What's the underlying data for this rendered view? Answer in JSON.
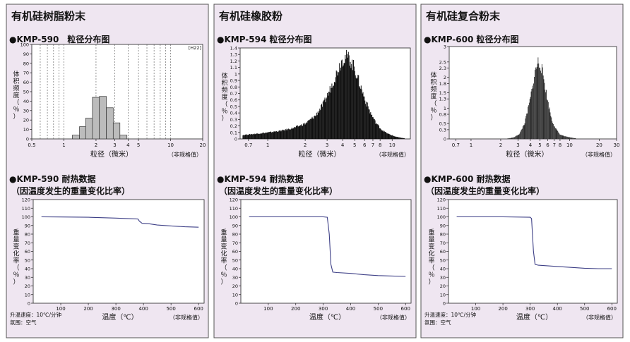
{
  "style": {
    "panel_bg": "#efe6f1",
    "panel_border": "#555555",
    "bar_fill": "#bcbcbc",
    "bar_stroke": "#333333",
    "dark_fill": "#111111",
    "curve": "#3d3f86",
    "grid_dash": "#555555"
  },
  "panels": [
    {
      "title": "有机硅树脂粉末",
      "dist_heading": "●KMP-590　粒径分布图",
      "unit_note": "[H22]",
      "dist_ylabel": "体积频度（％）",
      "dist_xlabel": "粒径（微米）",
      "dist_note": "（非规格值）",
      "heat_heading_1": "●KMP-590 耐热数据",
      "heat_heading_2": "（因温度发生的重量变化比率）",
      "heat_ylabel": "重量变化率（％）",
      "heat_xlabel": "温度（℃）",
      "heat_note": "（非规格值）",
      "cond_1": "升温速度：10℃/分钟",
      "cond_2": "氛围：空气"
    },
    {
      "title": "有机硅橡胶粉",
      "dist_heading": "●KMP-594 粒径分布图",
      "dist_ylabel": "体积频度（％）",
      "dist_xlabel": "粒径（微米）",
      "dist_note": "（非规格值）",
      "heat_heading_1": "●KMP-594 耐热数据",
      "heat_heading_2": "（因温度发生的重量变化比率）",
      "heat_ylabel": "重量变化率（％）",
      "heat_xlabel": "温度（℃）",
      "heat_note": "（非规格值）"
    },
    {
      "title": "有机硅复合粉末",
      "dist_heading": "●KMP-600 粒径分布图",
      "dist_ylabel": "体积频度（％）",
      "dist_xlabel": "粒径（微米）",
      "dist_note": "（非规格值）",
      "heat_heading_1": "●KMP-600 耐热数据",
      "heat_heading_2": "（因温度发生的重量变化比率）",
      "heat_ylabel": "重量变化率（％）",
      "heat_xlabel": "温度（℃）",
      "heat_note": "（非规格值）",
      "cond_1": "升温速度：10℃/分钟",
      "cond_2": "氛围：空气"
    }
  ],
  "chart_data": [
    {
      "type": "bar",
      "title": "KMP-590 粒径分布图",
      "xlabel": "粒径（微米）",
      "ylabel": "体积频度（％）",
      "x_scale": "log",
      "xlim": [
        0.5,
        20
      ],
      "ylim": [
        0,
        100
      ],
      "x_ticks": [
        0.5,
        1,
        2,
        3,
        4,
        5,
        10,
        20
      ],
      "y_ticks": [
        0,
        10,
        20,
        30,
        40,
        50,
        60,
        70,
        80,
        90,
        100
      ],
      "grid": "dashed vertical",
      "bins": [
        {
          "x0": 1.2,
          "x1": 1.4,
          "value": 4
        },
        {
          "x0": 1.4,
          "x1": 1.6,
          "value": 13
        },
        {
          "x0": 1.6,
          "x1": 1.85,
          "value": 22
        },
        {
          "x0": 1.85,
          "x1": 2.15,
          "value": 44
        },
        {
          "x0": 2.15,
          "x1": 2.5,
          "value": 45
        },
        {
          "x0": 2.5,
          "x1": 2.9,
          "value": 33
        },
        {
          "x0": 2.9,
          "x1": 3.35,
          "value": 17
        },
        {
          "x0": 3.35,
          "x1": 3.9,
          "value": 4
        }
      ]
    },
    {
      "type": "area",
      "title": "KMP-594 粒径分布图",
      "xlabel": "粒径（微米）",
      "ylabel": "体积频度（％）",
      "x_scale": "log",
      "xlim": [
        0.6,
        14
      ],
      "ylim": [
        0,
        1.4
      ],
      "x_ticks": [
        0.7,
        1,
        2,
        3,
        4,
        5,
        6,
        7,
        8,
        10
      ],
      "y_ticks": [
        0,
        0.1,
        0.2,
        0.3,
        0.4,
        0.5,
        0.6,
        0.7,
        0.8,
        0.9,
        1.0,
        1.1,
        1.2,
        1.3,
        1.4
      ],
      "x": [
        0.62,
        0.7,
        0.8,
        1.0,
        1.3,
        1.6,
        2.0,
        2.4,
        2.8,
        3.2,
        3.6,
        3.9,
        4.2,
        4.5,
        4.9,
        5.4,
        6.0,
        6.6,
        7.3,
        8.2,
        9.2,
        10.4,
        11.5,
        12.5
      ],
      "values": [
        0.06,
        0.07,
        0.08,
        0.1,
        0.13,
        0.17,
        0.24,
        0.36,
        0.55,
        0.8,
        1.05,
        1.22,
        1.28,
        1.25,
        1.12,
        0.88,
        0.62,
        0.42,
        0.26,
        0.14,
        0.08,
        0.04,
        0.02,
        0.01
      ]
    },
    {
      "type": "area",
      "title": "KMP-600 粒径分布图",
      "xlabel": "粒径（微米）",
      "ylabel": "体积频度（％）",
      "x_scale": "log",
      "xlim": [
        0.6,
        30
      ],
      "ylim": [
        0,
        3
      ],
      "x_ticks": [
        0.7,
        1,
        2,
        3,
        4,
        5,
        6,
        7,
        8,
        10,
        20,
        30
      ],
      "y_ticks": [
        0,
        0.3,
        0.5,
        0.8,
        1.0,
        1.3,
        1.5,
        1.8,
        2.0,
        2.3,
        2.5,
        3
      ],
      "y_tick_labels": [
        "0",
        "0.3",
        "0.5",
        "0.8",
        "1",
        "1.3",
        "1.5",
        "1.8",
        "2",
        "2.3",
        "2.5",
        "3"
      ],
      "x": [
        2.3,
        2.7,
        3.1,
        3.5,
        3.9,
        4.2,
        4.5,
        4.8,
        5.1,
        5.5,
        6.0,
        6.6,
        7.3,
        8.0,
        9.0,
        10.0,
        11.5
      ],
      "values": [
        0.01,
        0.05,
        0.17,
        0.55,
        1.2,
        1.75,
        2.3,
        2.55,
        2.4,
        1.9,
        1.2,
        0.6,
        0.3,
        0.14,
        0.08,
        0.05,
        0.02
      ]
    },
    {
      "type": "line",
      "title": "KMP-590 耐热数据",
      "xlabel": "温度（℃）",
      "ylabel": "重量变化率（％）",
      "xlim": [
        0,
        620
      ],
      "ylim": [
        0,
        120
      ],
      "x_ticks": [
        100,
        200,
        300,
        400,
        500,
        600
      ],
      "y_ticks": [
        0,
        10,
        20,
        30,
        40,
        50,
        60,
        70,
        80,
        90,
        100,
        110,
        120
      ],
      "x": [
        30,
        100,
        200,
        300,
        380,
        385,
        395,
        420,
        450,
        500,
        550,
        600
      ],
      "values": [
        100,
        99.8,
        99.5,
        98.5,
        97.5,
        95,
        92.5,
        92,
        90.5,
        89.5,
        88.5,
        88
      ]
    },
    {
      "type": "line",
      "title": "KMP-594 耐热数据",
      "xlabel": "温度（℃）",
      "ylabel": "重量变化率（％）",
      "xlim": [
        0,
        620
      ],
      "ylim": [
        0,
        120
      ],
      "x_ticks": [
        100,
        200,
        300,
        400,
        500,
        600
      ],
      "y_ticks": [
        0,
        10,
        20,
        30,
        40,
        50,
        60,
        70,
        80,
        90,
        100,
        110,
        120
      ],
      "x": [
        30,
        100,
        200,
        300,
        315,
        322,
        328,
        335,
        350,
        400,
        450,
        500,
        550,
        600
      ],
      "values": [
        100,
        100,
        100,
        100,
        99.5,
        80,
        45,
        36,
        35.5,
        34.5,
        33,
        32,
        31.5,
        31
      ]
    },
    {
      "type": "line",
      "title": "KMP-600 耐热数据",
      "xlabel": "温度（℃）",
      "ylabel": "重量变化率（％）",
      "xlim": [
        0,
        620
      ],
      "ylim": [
        0,
        120
      ],
      "x_ticks": [
        100,
        200,
        300,
        400,
        500,
        600
      ],
      "y_ticks": [
        0,
        10,
        20,
        30,
        40,
        50,
        60,
        70,
        80,
        90,
        100,
        110,
        120
      ],
      "x": [
        30,
        100,
        200,
        300,
        305,
        312,
        318,
        330,
        400,
        450,
        500,
        550,
        600
      ],
      "values": [
        100,
        100,
        100,
        99.5,
        98,
        60,
        45,
        44,
        42.5,
        41.5,
        40.5,
        40,
        40
      ]
    }
  ]
}
